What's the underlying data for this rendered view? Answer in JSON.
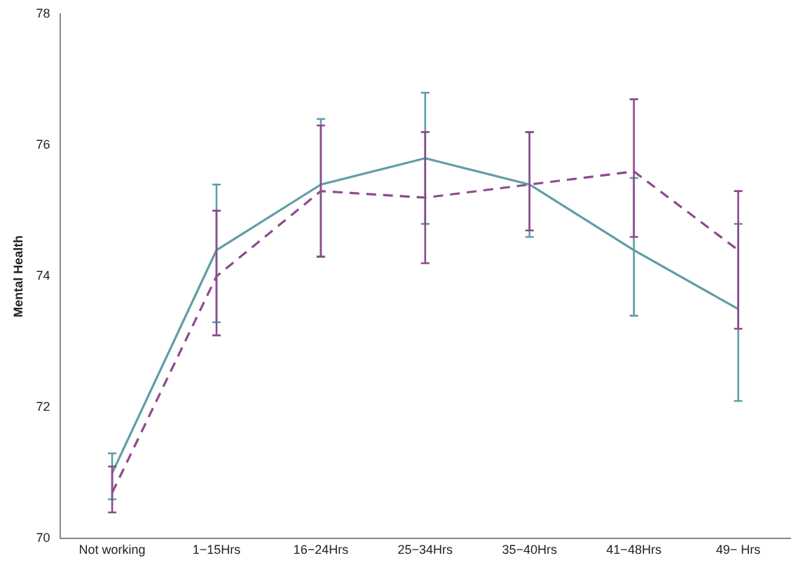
{
  "chart_data": {
    "type": "line",
    "ylabel": "Mental Health",
    "categories": [
      "Not working",
      "1−15Hrs",
      "16−24Hrs",
      "25−34Hrs",
      "35−40Hrs",
      "41−48Hrs",
      "49− Hrs"
    ],
    "series": [
      {
        "color": "#5f9ea6",
        "line_style": "solid",
        "values": [
          71.0,
          74.4,
          75.4,
          75.8,
          75.4,
          74.4,
          73.5
        ],
        "errors": [
          [
            70.6,
            71.3
          ],
          [
            73.3,
            75.4
          ],
          [
            74.3,
            76.4
          ],
          [
            74.8,
            76.8
          ],
          [
            74.6,
            76.2
          ],
          [
            73.4,
            75.5
          ],
          [
            72.1,
            74.8
          ]
        ]
      },
      {
        "color": "#8e4a8e",
        "line_style": "dashed",
        "values": [
          70.7,
          74.0,
          75.3,
          75.2,
          75.4,
          75.6,
          74.4
        ],
        "errors": [
          [
            70.4,
            71.1
          ],
          [
            73.1,
            75.0
          ],
          [
            74.3,
            76.3
          ],
          [
            74.2,
            76.2
          ],
          [
            74.7,
            76.2
          ],
          [
            74.6,
            76.7
          ],
          [
            73.2,
            75.3
          ]
        ]
      }
    ],
    "ylim": [
      70,
      78
    ],
    "yticks": [
      70,
      72,
      74,
      76,
      78
    ],
    "grid": false,
    "legend": false,
    "marker": "none"
  }
}
